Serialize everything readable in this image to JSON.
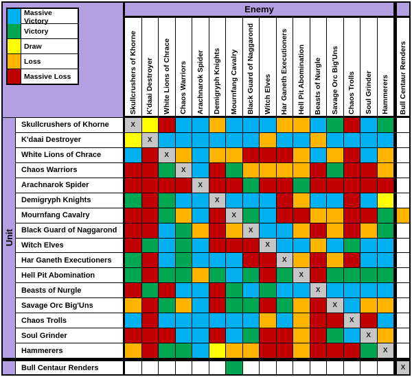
{
  "legend": {
    "items": [
      {
        "label": "Massive Victory",
        "code": "MV"
      },
      {
        "label": "Victory",
        "code": "V"
      },
      {
        "label": "Draw",
        "code": "D"
      },
      {
        "label": "Loss",
        "code": "L"
      },
      {
        "label": "Massive Loss",
        "code": "ML"
      }
    ]
  },
  "chart_data": {
    "type": "heatmap",
    "x_axis_label": "Enemy",
    "y_axis_label": "Unit",
    "diagonal_marker": "X",
    "legend_position": "top-left",
    "columns": [
      "Skullcrushers of Khorne",
      "K'daai Destroyer",
      "White Lions of Chrace",
      "Chaos Warriors",
      "Arachnarok Spider",
      "Demigryph Knights",
      "Mournfang Cavalry",
      "Black Guard of Naggarond",
      "Witch Elves",
      "Har Ganeth Executioners",
      "Hell Pit Abomination",
      "Beasts of Nurgle",
      "Savage Orc Big'Uns",
      "Chaos Trolls",
      "Soul Grinder",
      "Hammerers",
      "Bull Centaur Renders"
    ],
    "rows": [
      "Skullcrushers of Khorne",
      "K'daai Destroyer",
      "White Lions of Chrace",
      "Chaos Warriors",
      "Arachnarok Spider",
      "Demigryph Knights",
      "Mournfang Cavalry",
      "Black Guard of Naggarond",
      "Witch Elves",
      "Har Ganeth Executioners",
      "Hell Pit Abomination",
      "Beasts of Nurgle",
      "Savage Orc Big'Uns",
      "Chaos Trolls",
      "Soul Grinder",
      "Hammerers",
      "Bull Centaur Renders"
    ],
    "matrix": [
      [
        "X",
        "D",
        "ML",
        "MV",
        "MV",
        "L",
        "MV",
        "MV",
        "MV",
        "L",
        "L",
        "MV",
        "V",
        "ML",
        "MV",
        "V",
        ""
      ],
      [
        "D",
        "X",
        "MV",
        "MV",
        "MV",
        "MV",
        "MV",
        "MV",
        "L",
        "MV",
        "MV",
        "L",
        "MV",
        "MV",
        "MV",
        "MV",
        ""
      ],
      [
        "MV",
        "ML",
        "X",
        "L",
        "MV",
        "L",
        "L",
        "ML",
        "ML",
        "ML",
        "L",
        "MV",
        "L",
        "ML",
        "MV",
        "L",
        ""
      ],
      [
        "ML",
        "ML",
        "V",
        "X",
        "MV",
        "ML",
        "V",
        "L",
        "L",
        "L",
        "L",
        "ML",
        "V",
        "ML",
        "ML",
        "L",
        ""
      ],
      [
        "ML",
        "ML",
        "ML",
        "ML",
        "X",
        "ML",
        "ML",
        "V",
        "ML",
        "ML",
        "V",
        "ML",
        "ML",
        "ML",
        "ML",
        "ML",
        ""
      ],
      [
        "V",
        "ML",
        "V",
        "MV",
        "MV",
        "X",
        "MV",
        "MV",
        "MV",
        "ML",
        "L",
        "MV",
        "MV",
        "ML",
        "MV",
        "D",
        ""
      ],
      [
        "ML",
        "ML",
        "V",
        "L",
        "MV",
        "ML",
        "X",
        "V",
        "MV",
        "ML",
        "ML",
        "L",
        "L",
        "ML",
        "ML",
        "V",
        "L"
      ],
      [
        "ML",
        "ML",
        "MV",
        "V",
        "L",
        "ML",
        "L",
        "X",
        "MV",
        "MV",
        "L",
        "ML",
        "L",
        "ML",
        "L",
        "V",
        ""
      ],
      [
        "ML",
        "V",
        "MV",
        "V",
        "MV",
        "ML",
        "ML",
        "ML",
        "X",
        "MV",
        "MV",
        "L",
        "MV",
        "V",
        "MV",
        "MV",
        ""
      ],
      [
        "V",
        "ML",
        "MV",
        "V",
        "MV",
        "MV",
        "MV",
        "ML",
        "ML",
        "X",
        "L",
        "ML",
        "L",
        "ML",
        "MV",
        "MV",
        ""
      ],
      [
        "V",
        "ML",
        "V",
        "V",
        "L",
        "V",
        "MV",
        "V",
        "ML",
        "V",
        "X",
        "ML",
        "V",
        "V",
        "V",
        "V",
        ""
      ],
      [
        "ML",
        "V",
        "ML",
        "MV",
        "MV",
        "ML",
        "V",
        "MV",
        "V",
        "MV",
        "MV",
        "X",
        "MV",
        "MV",
        "MV",
        "MV",
        ""
      ],
      [
        "L",
        "ML",
        "V",
        "L",
        "MV",
        "ML",
        "V",
        "V",
        "ML",
        "V",
        "L",
        "ML",
        "X",
        "MV",
        "L",
        "L",
        ""
      ],
      [
        "MV",
        "ML",
        "MV",
        "MV",
        "MV",
        "MV",
        "MV",
        "MV",
        "L",
        "MV",
        "L",
        "ML",
        "ML",
        "X",
        "ML",
        "MV",
        ""
      ],
      [
        "ML",
        "ML",
        "ML",
        "MV",
        "MV",
        "ML",
        "MV",
        "V",
        "ML",
        "ML",
        "L",
        "ML",
        "V",
        "MV",
        "X",
        "L",
        ""
      ],
      [
        "L",
        "ML",
        "V",
        "V",
        "MV",
        "D",
        "L",
        "L",
        "ML",
        "ML",
        "L",
        "ML",
        "ML",
        "ML",
        "V",
        "X",
        ""
      ],
      [
        "",
        "",
        "",
        "",
        "",
        "",
        "V",
        "",
        "",
        "",
        "",
        "",
        "",
        "",
        "",
        "",
        "X"
      ]
    ]
  },
  "colors": {
    "MV": "#00B0F0",
    "V": "#00A651",
    "D": "#FFFF00",
    "L": "#FFB400",
    "ML": "#C00000",
    "X": "#C6C6C6",
    "EMPTY": "#FFFFFF",
    "panel_purple": "#B3A0E3"
  }
}
